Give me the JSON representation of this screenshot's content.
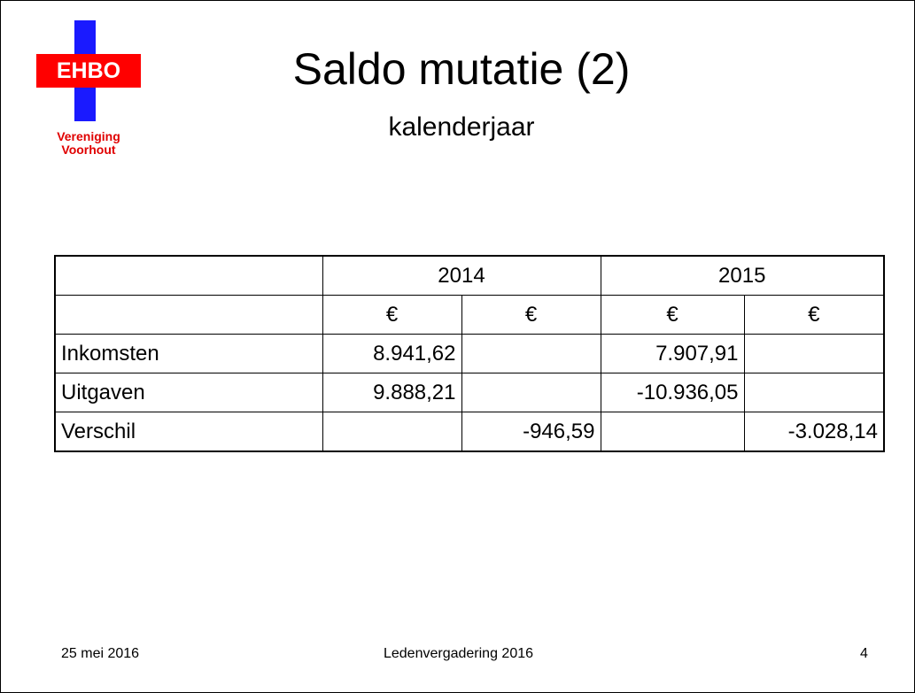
{
  "logo": {
    "badge": "EHBO",
    "name": [
      "Vereniging",
      "Voorhout"
    ]
  },
  "header": {
    "title": "Saldo mutatie (2)",
    "subtitle": "kalenderjaar"
  },
  "table": {
    "years": [
      "2014",
      "2015"
    ],
    "currency": [
      "€",
      "€",
      "€",
      "€"
    ],
    "rows": [
      [
        "Inkomsten",
        "8.941,62",
        null,
        "7.907,91",
        null
      ],
      [
        "Uitgaven",
        "9.888,21",
        null,
        "-10.936,05",
        null
      ],
      [
        "Verschil",
        null,
        "-946,59",
        null,
        "-3.028,14"
      ]
    ]
  },
  "footer": {
    "date": "25 mei 2016",
    "event": "Ledenvergadering 2016",
    "page": "4"
  }
}
